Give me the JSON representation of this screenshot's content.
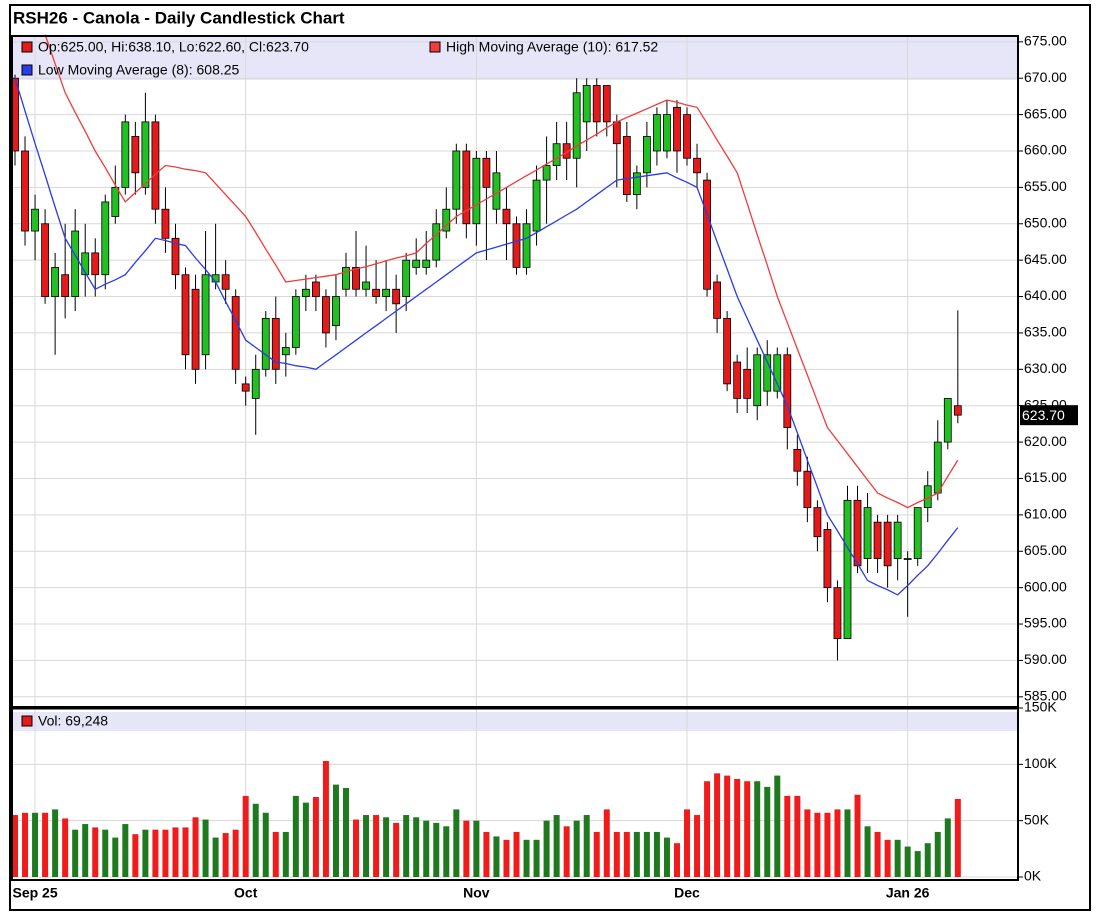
{
  "chart_data": [
    {
      "type": "candlestick",
      "title": "RSH26 - Canola - Daily Candlestick Chart",
      "ohlc_legend": "Op:625.00, Hi:638.10, Lo:622.60, Cl:623.70",
      "last_value_label": "623.70",
      "up_color": "#22c022",
      "down_color": "#e41b1b",
      "categories": [
        null,
        null,
        "Sep 25",
        null,
        null,
        null,
        null,
        null,
        null,
        null,
        null,
        null,
        null,
        null,
        null,
        null,
        null,
        null,
        null,
        null,
        null,
        null,
        null,
        "Oct",
        null,
        null,
        null,
        null,
        null,
        null,
        null,
        null,
        null,
        null,
        null,
        null,
        null,
        null,
        null,
        null,
        null,
        null,
        null,
        null,
        null,
        null,
        "Nov",
        null,
        null,
        null,
        null,
        null,
        null,
        null,
        null,
        null,
        null,
        null,
        null,
        null,
        null,
        null,
        null,
        null,
        null,
        null,
        null,
        "Dec",
        null,
        null,
        null,
        null,
        null,
        null,
        null,
        null,
        null,
        null,
        null,
        null,
        null,
        null,
        null,
        null,
        null,
        null,
        null,
        null,
        null,
        "Jan 26",
        null,
        null,
        null,
        null,
        null
      ],
      "open": [
        670,
        660,
        649,
        650,
        640,
        643,
        640,
        643,
        646,
        643,
        651,
        655,
        662,
        655,
        664,
        652,
        648,
        643,
        641,
        632,
        642,
        643,
        640,
        628,
        626,
        630,
        637,
        632,
        633,
        640,
        642,
        640,
        636,
        641,
        644,
        641,
        641,
        640,
        641,
        640,
        644,
        644,
        645,
        649,
        652,
        660,
        650,
        659,
        652,
        652,
        650,
        644,
        649,
        656,
        658,
        661,
        659,
        664,
        669,
        669,
        664,
        662,
        654,
        657,
        660,
        660,
        666,
        665,
        659,
        656,
        642,
        637,
        631,
        630,
        625,
        627,
        627,
        632,
        619,
        616,
        611,
        608,
        600,
        593,
        612,
        604,
        609,
        609,
        604,
        604,
        604,
        611,
        613,
        620,
        625
      ],
      "high": [
        670.5,
        662,
        654,
        652,
        646,
        650,
        652,
        650,
        648,
        654,
        658,
        665,
        664,
        668,
        665,
        655,
        650,
        644,
        643,
        649,
        650,
        645,
        641,
        629,
        632,
        638,
        640,
        635,
        641,
        643,
        643,
        641,
        643,
        646,
        649,
        647,
        645,
        645,
        643,
        646,
        648,
        649,
        652,
        655,
        661,
        661,
        660,
        660,
        660,
        655,
        651,
        652,
        658,
        662,
        664,
        664,
        670,
        670,
        670,
        669,
        665,
        664,
        658,
        664,
        666,
        667,
        667,
        666,
        661,
        657,
        643,
        638,
        632,
        633,
        633,
        634,
        633,
        633,
        621,
        618,
        612,
        609,
        601,
        614,
        614,
        613,
        610,
        610,
        610,
        605,
        611,
        616,
        623,
        626,
        638.1
      ],
      "low": [
        658,
        647,
        645,
        639,
        632,
        637,
        638,
        640,
        640,
        641,
        650,
        654,
        654,
        654,
        650,
        646,
        641,
        630,
        628,
        630,
        641,
        639,
        628,
        625,
        621,
        629,
        628,
        629,
        632,
        638,
        638,
        633,
        634,
        640,
        640,
        640,
        639,
        638,
        635,
        638,
        643,
        643,
        644,
        648,
        650,
        648,
        647,
        645,
        650,
        645,
        643,
        643,
        647,
        650,
        656,
        656,
        655,
        660,
        662,
        662,
        655,
        653,
        652,
        655,
        658,
        659,
        657,
        658,
        655,
        640,
        635,
        627,
        624,
        624,
        623,
        625,
        626,
        619,
        614,
        609,
        605,
        598,
        590,
        593,
        602,
        602,
        602,
        600,
        601,
        596,
        603,
        609,
        612,
        619,
        622.6
      ],
      "close": [
        660,
        649,
        652,
        640,
        644,
        640,
        649,
        646,
        643,
        653,
        655,
        664,
        657,
        664,
        652,
        648,
        643,
        632,
        630,
        643,
        643,
        641,
        630,
        627,
        630,
        637,
        630,
        633,
        640,
        641,
        640,
        635,
        640,
        644,
        641,
        642,
        640,
        641,
        639,
        645,
        645,
        645,
        650,
        652,
        660,
        650,
        659,
        655,
        657,
        650,
        644,
        650,
        656,
        658,
        661,
        659,
        668,
        669,
        664,
        664,
        661,
        654,
        657,
        662,
        665,
        665,
        660,
        659,
        657,
        641,
        637,
        628,
        626,
        626,
        632,
        632,
        632,
        622,
        616,
        611,
        607,
        600,
        593,
        612,
        603,
        611,
        604,
        603,
        609,
        604,
        611,
        614,
        620,
        626,
        623.7
      ],
      "series": [
        {
          "name": "High Moving Average (10): 617.52",
          "color": "#f03c3c",
          "values": [
            null,
            null,
            null,
            676,
            672,
            668,
            665.3,
            662.7,
            660,
            657.7,
            655.3,
            653,
            654.3,
            655.5,
            656.8,
            658,
            657.8,
            657.5,
            657.3,
            657,
            655.5,
            654,
            652.5,
            651,
            648.8,
            646.5,
            644.3,
            642,
            642.2,
            642.4,
            642.6,
            642.8,
            643,
            643.4,
            643.8,
            644.1,
            644.5,
            644.9,
            645.3,
            645.6,
            646,
            647.3,
            648.5,
            649.8,
            651,
            651.8,
            652.6,
            653.4,
            654.2,
            655,
            655.8,
            656.6,
            657.4,
            658.2,
            659,
            659.8,
            660.7,
            661.5,
            662.3,
            663.2,
            664,
            664.6,
            665.2,
            665.8,
            666.4,
            667,
            666.7,
            666.3,
            666,
            663.8,
            661.5,
            659.3,
            657,
            652.8,
            648.5,
            644.3,
            640,
            636.4,
            632.8,
            629.2,
            625.6,
            622,
            620.2,
            618.4,
            616.6,
            614.8,
            613,
            612.3,
            611.7,
            611,
            611.7,
            612.3,
            613,
            615.3,
            617.52
          ]
        },
        {
          "name": "Low Moving Average (8): 608.25",
          "color": "#2a3ce8",
          "values": [
            670,
            665.5,
            661,
            656.7,
            652.3,
            648,
            645.7,
            643.3,
            641,
            641.7,
            642.3,
            643,
            644.7,
            646.3,
            648,
            647.7,
            647.3,
            647,
            645.3,
            643.7,
            642,
            639.3,
            636.7,
            634,
            633,
            632,
            631,
            630.8,
            630.5,
            630.3,
            630,
            631,
            632,
            633,
            634,
            635,
            636,
            637,
            638,
            639,
            640,
            641,
            642,
            643,
            644,
            645,
            646,
            646.4,
            646.8,
            647.2,
            647.6,
            648,
            648.8,
            649.6,
            650.4,
            651.2,
            652,
            653,
            654,
            655,
            656,
            656.2,
            656.4,
            656.6,
            656.8,
            657,
            656.3,
            655.7,
            655,
            651.3,
            647.5,
            643.8,
            640,
            637,
            634,
            631,
            628,
            625,
            621.3,
            617.5,
            613.8,
            610,
            607.8,
            605.5,
            603.3,
            601,
            600.3,
            599.7,
            599,
            600.3,
            601.7,
            603,
            604.7,
            606.5,
            608.25
          ]
        }
      ],
      "ylim": [
        583.6,
        675.8
      ],
      "yticks": [
        {
          "value": 585,
          "label": "585.00"
        },
        {
          "value": 590,
          "label": "590.00"
        },
        {
          "value": 595,
          "label": "595.00"
        },
        {
          "value": 600,
          "label": "600.00"
        },
        {
          "value": 605,
          "label": "605.00"
        },
        {
          "value": 610,
          "label": "610.00"
        },
        {
          "value": 615,
          "label": "615.00"
        },
        {
          "value": 620,
          "label": "620.00"
        },
        {
          "value": 625,
          "label": "625.00"
        },
        {
          "value": 630,
          "label": "630.00"
        },
        {
          "value": 635,
          "label": "635.00"
        },
        {
          "value": 640,
          "label": "640.00"
        },
        {
          "value": 645,
          "label": "645.00"
        },
        {
          "value": 650,
          "label": "650.00"
        },
        {
          "value": 655,
          "label": "655.00"
        },
        {
          "value": 660,
          "label": "660.00"
        },
        {
          "value": 665,
          "label": "665.00"
        },
        {
          "value": 670,
          "label": "670.00"
        },
        {
          "value": 675,
          "label": "675.00"
        }
      ],
      "grid": true
    },
    {
      "type": "bar",
      "up_color": "#1f7a1f",
      "down_color": "#f01c1c",
      "series": [
        {
          "name": "Vol: 69,248",
          "color": "#e41b1b",
          "values": [
            55000,
            57000,
            57000,
            57000,
            60000,
            52000,
            42000,
            47000,
            44000,
            42000,
            35000,
            47000,
            38000,
            42000,
            42000,
            42000,
            44000,
            44000,
            53000,
            51000,
            35000,
            39000,
            42000,
            72000,
            65000,
            57000,
            40000,
            40000,
            72000,
            66000,
            71000,
            103000,
            82000,
            79000,
            51000,
            55000,
            55000,
            53000,
            48000,
            55000,
            53000,
            50000,
            48000,
            45000,
            60000,
            50000,
            50000,
            40000,
            36000,
            33000,
            40000,
            33000,
            33000,
            50000,
            55000,
            45000,
            50000,
            55000,
            40000,
            60000,
            40000,
            40000,
            40000,
            40000,
            40000,
            35000,
            30000,
            60000,
            55000,
            85000,
            92000,
            90000,
            87000,
            85000,
            85000,
            80000,
            90000,
            72000,
            72000,
            60000,
            57000,
            57000,
            60000,
            60000,
            73000,
            45000,
            40000,
            33000,
            33000,
            27000,
            23000,
            30000,
            40000,
            52000,
            69248
          ]
        }
      ],
      "ylim": [
        0,
        150000
      ],
      "yticks": [
        {
          "value": 0,
          "label": "0K"
        },
        {
          "value": 50000,
          "label": "50K"
        },
        {
          "value": 100000,
          "label": "100K"
        },
        {
          "value": 150000,
          "label": "150K"
        }
      ],
      "grid": true
    }
  ]
}
